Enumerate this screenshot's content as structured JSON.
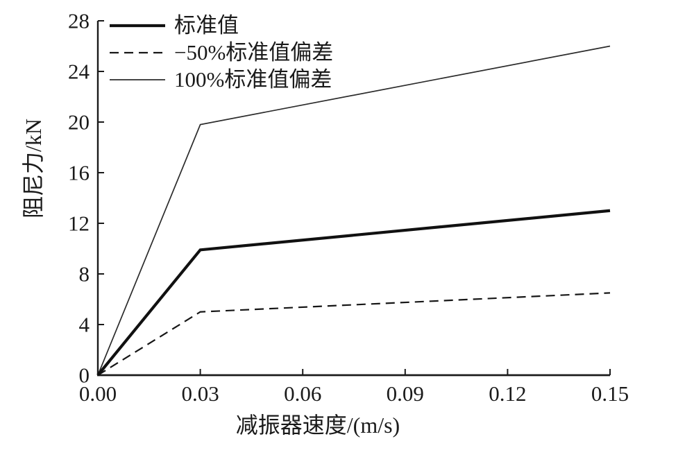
{
  "colors": {
    "background": "#ffffff",
    "axis": "#1a1a1a",
    "text": "#1a1a1a",
    "series_main": "#111111",
    "series_thin": "#2b2b2b"
  },
  "chart_data": {
    "type": "line",
    "title": "",
    "xlabel": "减振器速度/(m/s)",
    "ylabel": "阻尼力/kN",
    "xlim": [
      0,
      0.15
    ],
    "ylim": [
      0,
      28
    ],
    "xticks": [
      0.0,
      0.03,
      0.06,
      0.09,
      0.12,
      0.15
    ],
    "xtick_labels": [
      "0.00",
      "0.03",
      "0.06",
      "0.09",
      "0.12",
      "0.15"
    ],
    "yticks": [
      0,
      4,
      8,
      12,
      16,
      20,
      24,
      28
    ],
    "ytick_labels": [
      "0",
      "4",
      "8",
      "12",
      "16",
      "20",
      "24",
      "28"
    ],
    "grid": false,
    "legend_position": "top-left",
    "series": [
      {
        "name": "标准值",
        "style": "solid",
        "color": "#111111",
        "stroke_width": 4.2,
        "x": [
          0,
          0.03,
          0.15
        ],
        "y": [
          0,
          9.9,
          13.0
        ]
      },
      {
        "name": "−50%标准值偏差",
        "style": "dashed",
        "dash": "13 8",
        "color": "#161616",
        "stroke_width": 2.2,
        "x": [
          0,
          0.03,
          0.15
        ],
        "y": [
          0,
          5.0,
          6.5
        ]
      },
      {
        "name": "100%标准值偏差",
        "style": "solid",
        "color": "#2b2b2b",
        "stroke_width": 1.7,
        "x": [
          0,
          0.03,
          0.15
        ],
        "y": [
          0,
          19.8,
          26.0
        ]
      }
    ]
  }
}
